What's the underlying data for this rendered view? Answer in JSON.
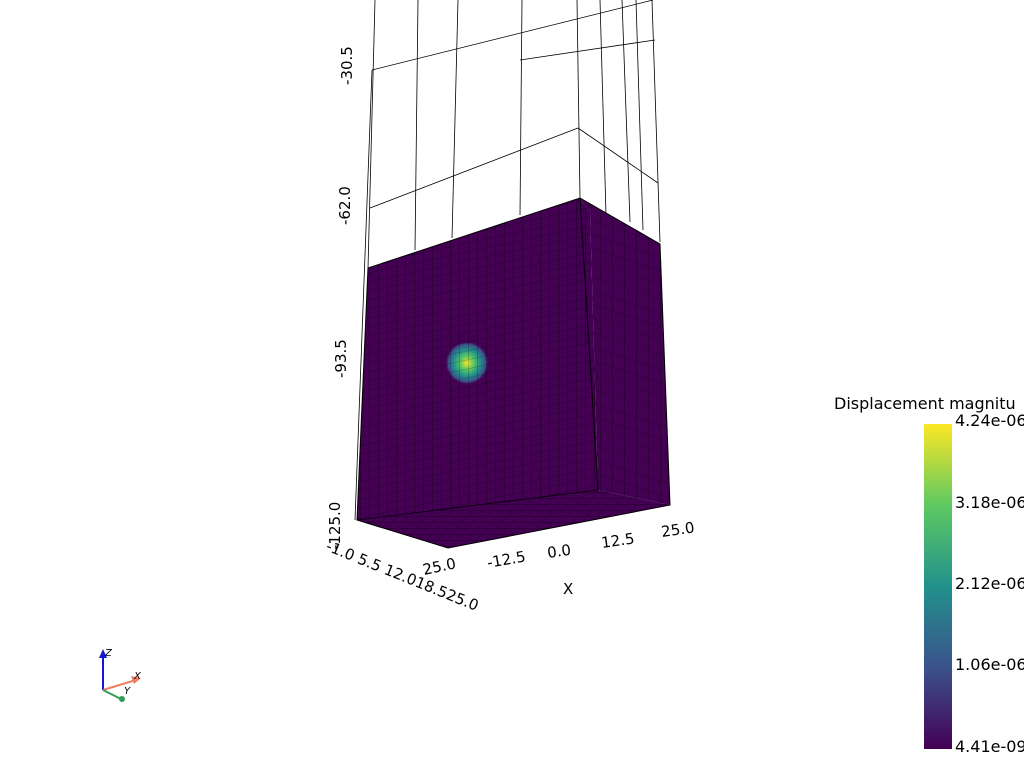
{
  "scalar_bar": {
    "title": "Displacement magnitu",
    "labels": [
      "4.24e-06",
      "3.18e-06",
      "2.12e-06",
      "1.06e-06",
      "4.41e-09"
    ],
    "colormap": "viridis",
    "colors": [
      "#fde725",
      "#5ec962",
      "#21918c",
      "#3b528b",
      "#440154"
    ]
  },
  "axes": {
    "z_ticks": [
      "-30.5",
      "-62.0",
      "-93.5",
      "-125.0"
    ],
    "x_ticks": [
      "-12.5",
      "0.0",
      "12.5",
      "25.0"
    ],
    "y_ticks": "-1.0 5.5 12.018.525.0",
    "x_tick_near": "25.0",
    "x_title": "X"
  },
  "orientation_widget": {
    "z_label": "Z",
    "x_label": "X",
    "y_label": "Y",
    "z_color": "#1515d4",
    "x_color": "#f07c62",
    "y_color": "#2e9e57"
  },
  "mesh": {
    "base_color": "#440154",
    "highlight_color": "#fde725"
  }
}
